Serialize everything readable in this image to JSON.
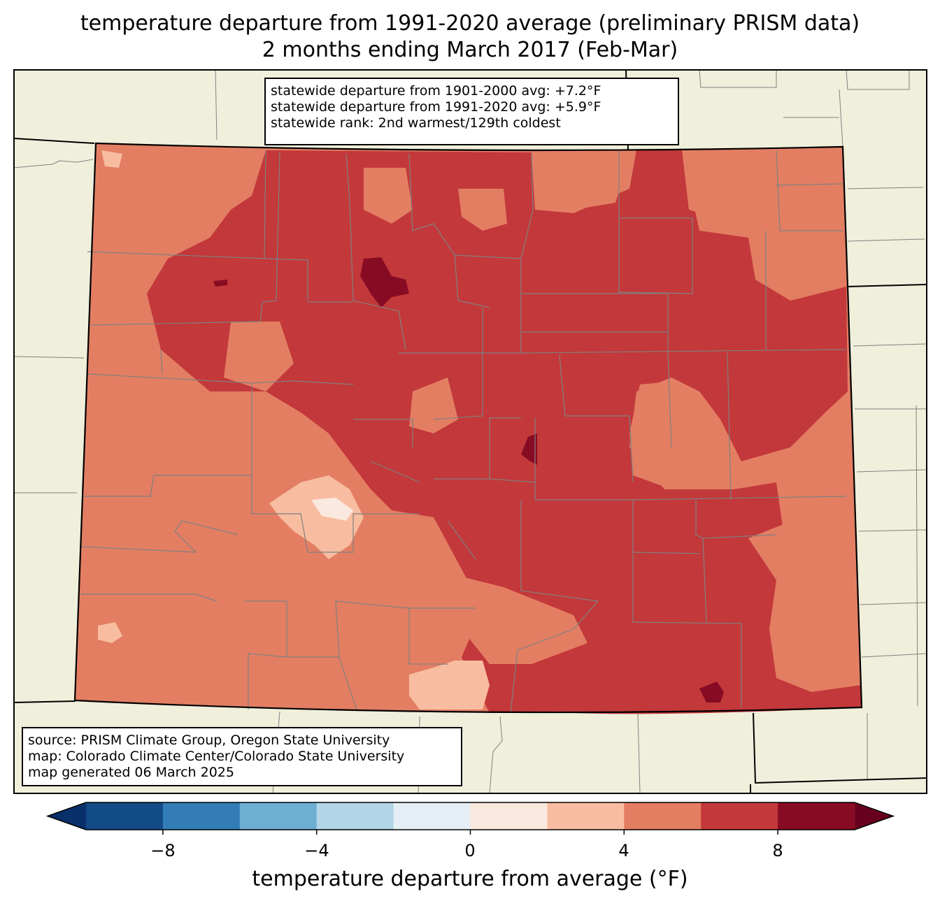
{
  "title": {
    "line1": "temperature departure from 1991-2020 average (preliminary PRISM data)",
    "line2": "2 months ending March 2017 (Feb-Mar)"
  },
  "stats": {
    "line1": "statewide departure from 1901-2000 avg: +7.2°F",
    "line2": "statewide departure from 1991-2020 avg: +5.9°F",
    "line3": "statewide rank: 2nd warmest/129th coldest"
  },
  "source": {
    "line1": "source: PRISM Climate Group, Oregon State University",
    "line2": "map: Colorado Climate Center/Colorado State University",
    "line3": "map generated 06 March 2025"
  },
  "colorbar": {
    "label": "temperature departure from average (°F)",
    "ticks": [
      "−8",
      "−4",
      "0",
      "4",
      "8"
    ],
    "levels": [
      -10,
      -8,
      -6,
      -4,
      -2,
      0,
      2,
      4,
      6,
      8,
      10
    ],
    "colors": [
      "#134b87",
      "#327db7",
      "#6daed3",
      "#b2d5e7",
      "#e4eef4",
      "#fae9df",
      "#f8bda0",
      "#e37e63",
      "#c3383a",
      "#880b24"
    ],
    "under_color": "#08306b",
    "over_color": "#67001f"
  },
  "colors": {
    "land_outside": "#efefdb",
    "state_border": "#000000",
    "county_border": "#808080"
  }
}
